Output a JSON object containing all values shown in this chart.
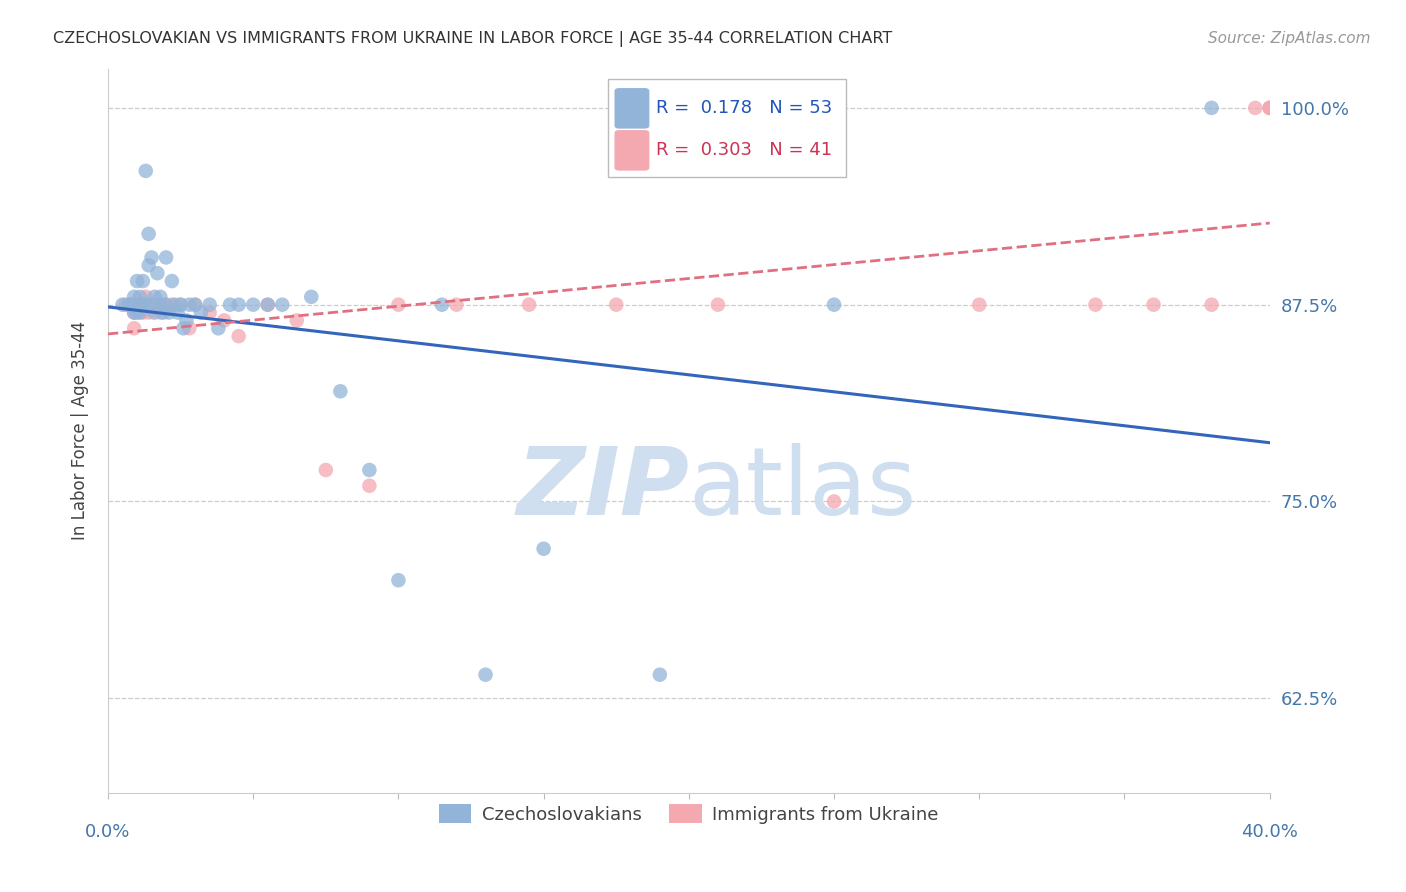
{
  "title": "CZECHOSLOVAKIAN VS IMMIGRANTS FROM UKRAINE IN LABOR FORCE | AGE 35-44 CORRELATION CHART",
  "source": "Source: ZipAtlas.com",
  "ylabel": "In Labor Force | Age 35-44",
  "ytick_values": [
    1.0,
    0.875,
    0.75,
    0.625
  ],
  "ytick_labels": [
    "100.0%",
    "87.5%",
    "75.0%",
    "62.5%"
  ],
  "xmin": 0.0,
  "xmax": 0.4,
  "ymin": 0.565,
  "ymax": 1.025,
  "blue_R": 0.178,
  "blue_N": 53,
  "pink_R": 0.303,
  "pink_N": 41,
  "blue_color": "#92B4D8",
  "pink_color": "#F4A8B0",
  "line_blue": "#3366BB",
  "line_pink": "#E07080",
  "blue_scatter_x": [
    0.005,
    0.007,
    0.008,
    0.009,
    0.009,
    0.01,
    0.01,
    0.011,
    0.011,
    0.011,
    0.012,
    0.012,
    0.013,
    0.013,
    0.014,
    0.014,
    0.015,
    0.015,
    0.016,
    0.016,
    0.017,
    0.018,
    0.018,
    0.019,
    0.02,
    0.02,
    0.021,
    0.022,
    0.023,
    0.024,
    0.025,
    0.026,
    0.027,
    0.028,
    0.03,
    0.032,
    0.035,
    0.038,
    0.042,
    0.045,
    0.05,
    0.055,
    0.06,
    0.07,
    0.08,
    0.09,
    0.1,
    0.115,
    0.13,
    0.15,
    0.19,
    0.25,
    0.38
  ],
  "blue_scatter_y": [
    0.875,
    0.875,
    0.875,
    0.88,
    0.87,
    0.89,
    0.87,
    0.88,
    0.875,
    0.87,
    0.89,
    0.875,
    0.96,
    0.875,
    0.92,
    0.9,
    0.905,
    0.875,
    0.88,
    0.87,
    0.895,
    0.88,
    0.875,
    0.87,
    0.905,
    0.875,
    0.87,
    0.89,
    0.875,
    0.87,
    0.875,
    0.86,
    0.865,
    0.875,
    0.875,
    0.87,
    0.875,
    0.86,
    0.875,
    0.875,
    0.875,
    0.875,
    0.875,
    0.88,
    0.82,
    0.77,
    0.7,
    0.875,
    0.64,
    0.72,
    0.64,
    0.875,
    1.0
  ],
  "pink_scatter_x": [
    0.006,
    0.008,
    0.009,
    0.009,
    0.01,
    0.011,
    0.012,
    0.012,
    0.013,
    0.014,
    0.015,
    0.016,
    0.017,
    0.018,
    0.019,
    0.02,
    0.022,
    0.025,
    0.028,
    0.03,
    0.035,
    0.04,
    0.045,
    0.055,
    0.065,
    0.075,
    0.09,
    0.1,
    0.12,
    0.145,
    0.175,
    0.21,
    0.25,
    0.3,
    0.34,
    0.36,
    0.38,
    0.395,
    0.4,
    0.4,
    0.4
  ],
  "pink_scatter_y": [
    0.875,
    0.875,
    0.87,
    0.86,
    0.875,
    0.875,
    0.875,
    0.87,
    0.88,
    0.87,
    0.875,
    0.875,
    0.875,
    0.87,
    0.875,
    0.875,
    0.875,
    0.875,
    0.86,
    0.875,
    0.87,
    0.865,
    0.855,
    0.875,
    0.865,
    0.77,
    0.76,
    0.875,
    0.875,
    0.875,
    0.875,
    0.875,
    0.75,
    0.875,
    0.875,
    0.875,
    0.875,
    1.0,
    1.0,
    1.0,
    1.0
  ],
  "grid_color": "#CCCCCC",
  "background_color": "#FFFFFF",
  "tick_label_color": "#4477AA",
  "ylabel_color": "#444444",
  "title_color": "#333333",
  "source_color": "#999999",
  "watermark_color": "#D0DFEF",
  "legend_edge_color": "#BBBBBB",
  "legend_text_blue_color": "#2255BB",
  "legend_text_pink_color": "#CC3355"
}
